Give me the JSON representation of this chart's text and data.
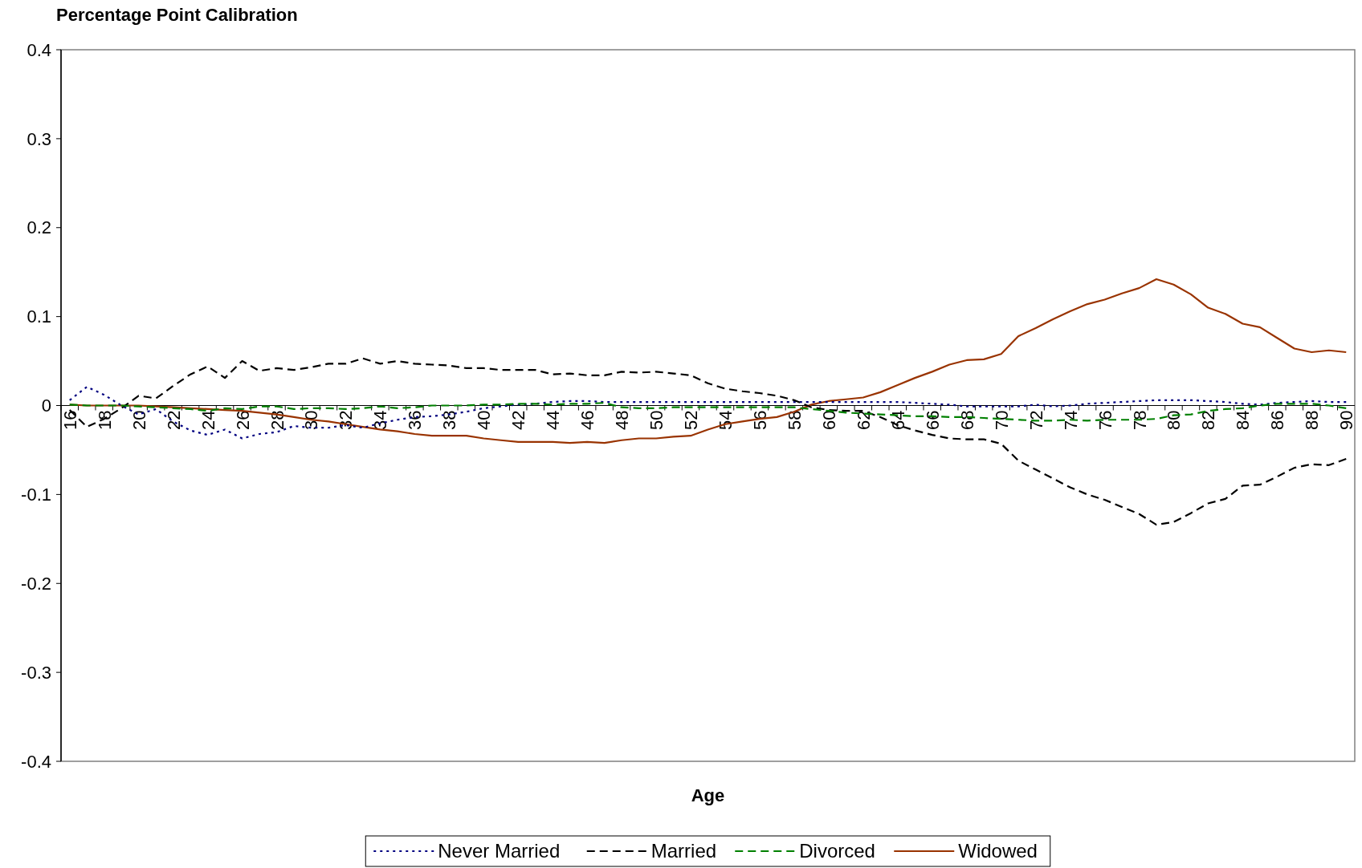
{
  "chart_data": {
    "type": "line",
    "title": "Percentage Point Calibration",
    "xlabel": "Age",
    "categories": [
      "16",
      null,
      "18",
      null,
      "20",
      null,
      "22",
      null,
      "24",
      null,
      "26",
      null,
      "28",
      null,
      "30",
      null,
      "32",
      null,
      "34",
      null,
      "36",
      null,
      "38",
      null,
      "40",
      null,
      "42",
      null,
      "44",
      null,
      "46",
      null,
      "48",
      null,
      "50",
      null,
      "52",
      null,
      "54",
      null,
      "56",
      null,
      "58",
      null,
      "60",
      null,
      "62",
      null,
      "64",
      null,
      "66",
      null,
      "68",
      null,
      "70",
      null,
      "72",
      null,
      "74",
      null,
      "76",
      null,
      "78",
      null,
      "80",
      null,
      "82",
      null,
      "84",
      null,
      "86",
      null,
      "88",
      null,
      "90"
    ],
    "ylim": [
      -0.4,
      0.4
    ],
    "yticks": [
      -0.4,
      -0.3,
      -0.2,
      -0.1,
      0,
      0.1,
      0.2,
      0.3,
      0.4
    ],
    "grid": false,
    "legend": "bottom",
    "marker": "none",
    "series": [
      {
        "name": "Never Married",
        "color": "#000080",
        "line_style": "dotted",
        "values": [
          0.006,
          0.021,
          0.012,
          0,
          -0.01,
          -0.004,
          -0.018,
          -0.028,
          -0.033,
          -0.027,
          -0.037,
          -0.032,
          -0.03,
          -0.023,
          -0.025,
          -0.025,
          -0.022,
          -0.025,
          -0.02,
          -0.016,
          -0.013,
          -0.012,
          -0.01,
          -0.007,
          -0.003,
          -0.001,
          0.001,
          0.002,
          0.004,
          0.005,
          0.005,
          0.004,
          0.004,
          0.004,
          0.004,
          0.004,
          0.004,
          0.004,
          0.004,
          0.004,
          0.004,
          0.004,
          0.004,
          0.004,
          0.004,
          0.004,
          0.004,
          0.004,
          0.004,
          0.003,
          0.002,
          0.001,
          -0.001,
          -0.001,
          -0.001,
          -0.001,
          0.001,
          -0.001,
          0,
          0.002,
          0.003,
          0.004,
          0.005,
          0.006,
          0.006,
          0.006,
          0.005,
          0.004,
          0.002,
          0.001,
          0.003,
          0.004,
          0.005,
          0.004,
          0.004
        ]
      },
      {
        "name": "Married",
        "color": "#000000",
        "line_style": "dashed",
        "values": [
          -0.005,
          -0.024,
          -0.015,
          -0.003,
          0.011,
          0.008,
          0.022,
          0.035,
          0.044,
          0.031,
          0.05,
          0.039,
          0.042,
          0.04,
          0.043,
          0.047,
          0.047,
          0.053,
          0.047,
          0.05,
          0.047,
          0.046,
          0.045,
          0.042,
          0.042,
          0.04,
          0.04,
          0.04,
          0.035,
          0.036,
          0.034,
          0.034,
          0.038,
          0.037,
          0.038,
          0.036,
          0.034,
          0.025,
          0.019,
          0.016,
          0.014,
          0.011,
          0.006,
          -0.002,
          -0.005,
          -0.006,
          -0.006,
          -0.013,
          -0.022,
          -0.028,
          -0.033,
          -0.037,
          -0.038,
          -0.038,
          -0.043,
          -0.062,
          -0.072,
          -0.082,
          -0.092,
          -0.1,
          -0.106,
          -0.114,
          -0.122,
          -0.134,
          -0.131,
          -0.121,
          -0.11,
          -0.105,
          -0.09,
          -0.089,
          -0.08,
          -0.07,
          -0.066,
          -0.067,
          -0.06
        ]
      },
      {
        "name": "Divorced",
        "color": "#008000",
        "line_style": "dashed",
        "values": [
          0.001,
          0,
          0,
          0,
          -0.001,
          -0.002,
          -0.003,
          -0.004,
          -0.006,
          -0.003,
          -0.004,
          -0.001,
          -0.001,
          -0.004,
          -0.003,
          -0.003,
          -0.004,
          -0.003,
          -0.001,
          -0.003,
          -0.002,
          0,
          0,
          0,
          0.001,
          0.001,
          0.002,
          0.002,
          0.001,
          0.002,
          0.002,
          0.003,
          -0.002,
          -0.003,
          -0.003,
          -0.002,
          -0.002,
          -0.002,
          -0.002,
          -0.002,
          -0.002,
          -0.002,
          -0.002,
          -0.004,
          -0.006,
          -0.008,
          -0.009,
          -0.01,
          -0.011,
          -0.012,
          -0.012,
          -0.013,
          -0.013,
          -0.014,
          -0.015,
          -0.016,
          -0.017,
          -0.017,
          -0.016,
          -0.017,
          -0.016,
          -0.016,
          -0.016,
          -0.015,
          -0.011,
          -0.01,
          -0.006,
          -0.004,
          -0.003,
          0,
          0.002,
          0.002,
          0.002,
          0,
          -0.003
        ]
      },
      {
        "name": "Widowed",
        "color": "#993300",
        "line_style": "solid",
        "values": [
          0.001,
          0,
          0,
          0,
          0,
          -0.001,
          -0.002,
          -0.003,
          -0.004,
          -0.005,
          -0.006,
          -0.008,
          -0.01,
          -0.013,
          -0.016,
          -0.018,
          -0.021,
          -0.024,
          -0.027,
          -0.029,
          -0.032,
          -0.034,
          -0.034,
          -0.034,
          -0.037,
          -0.039,
          -0.041,
          -0.041,
          -0.041,
          -0.042,
          -0.041,
          -0.042,
          -0.039,
          -0.037,
          -0.037,
          -0.035,
          -0.034,
          -0.027,
          -0.021,
          -0.018,
          -0.015,
          -0.013,
          -0.007,
          0.001,
          0.005,
          0.007,
          0.009,
          0.015,
          0.023,
          0.031,
          0.038,
          0.046,
          0.051,
          0.052,
          0.058,
          0.078,
          0.087,
          0.097,
          0.106,
          0.114,
          0.119,
          0.126,
          0.132,
          0.142,
          0.136,
          0.125,
          0.11,
          0.103,
          0.092,
          0.088,
          0.076,
          0.064,
          0.06,
          0.062,
          0.06
        ]
      }
    ]
  }
}
